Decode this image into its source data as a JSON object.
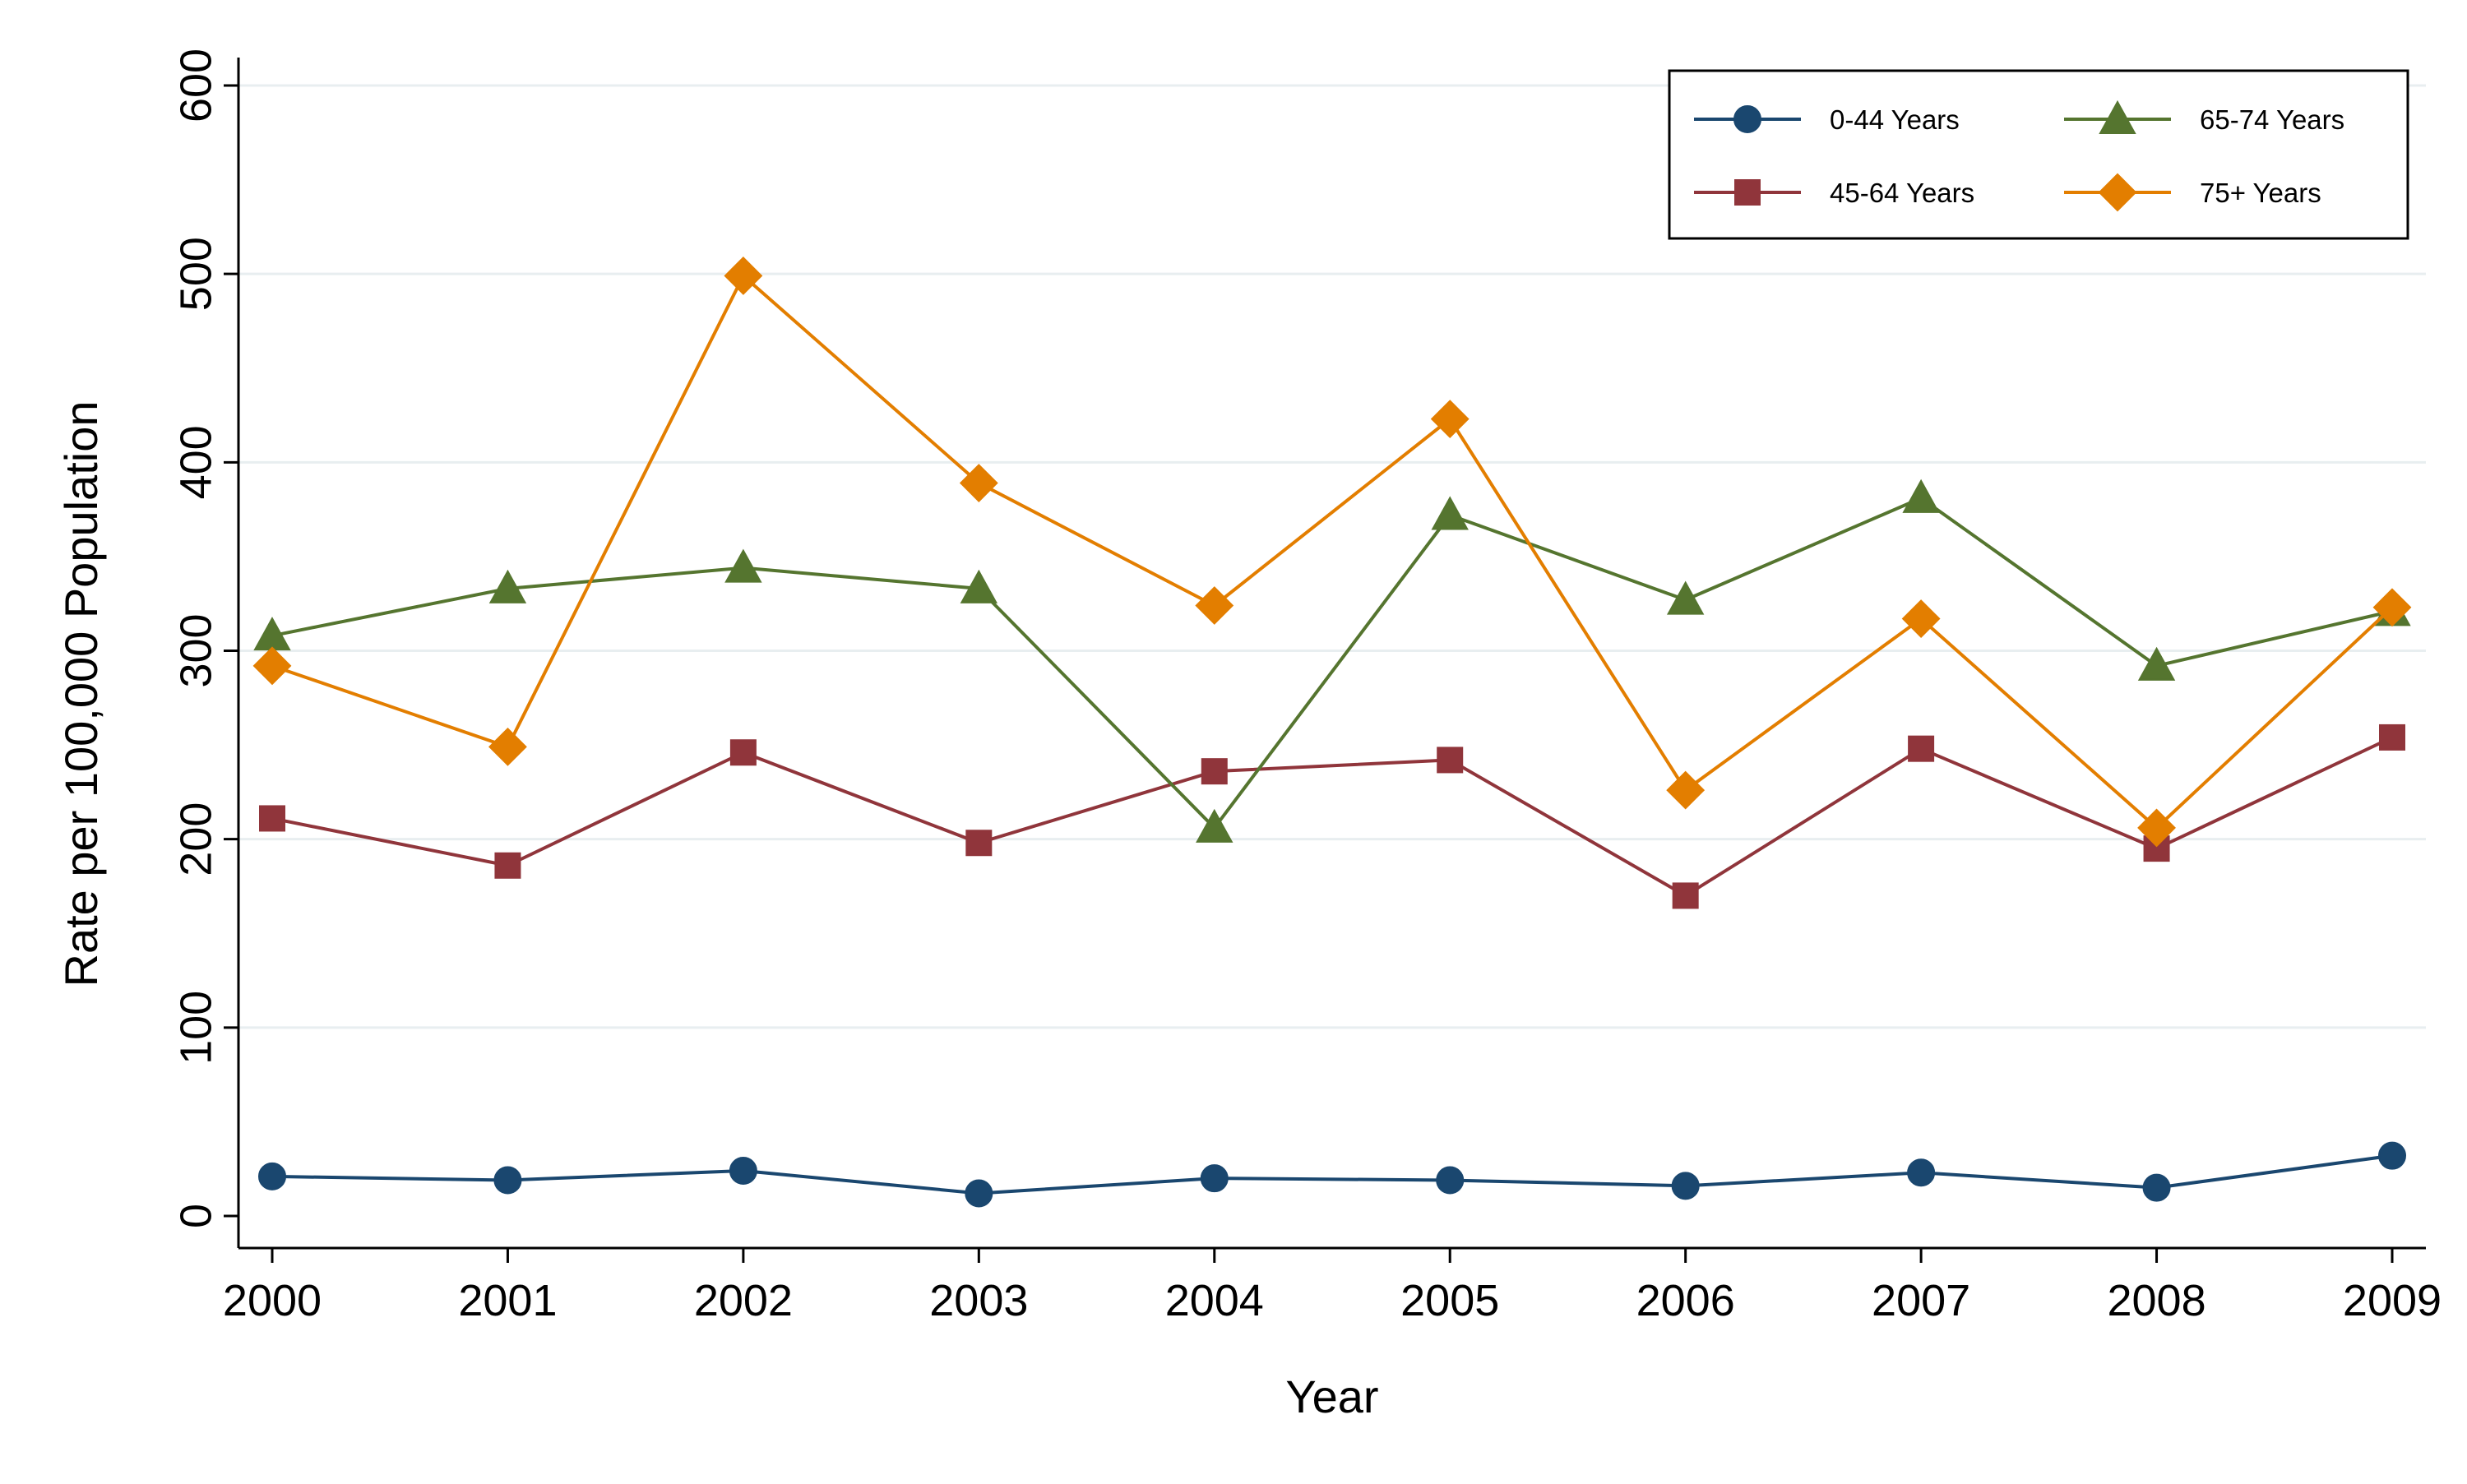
{
  "chart_data": {
    "type": "line",
    "title": "",
    "xlabel": "Year",
    "ylabel": "Rate per 100,000 Population",
    "ylim": [
      0,
      600
    ],
    "yticks": [
      "0",
      "100",
      "200",
      "300",
      "400",
      "500",
      "600"
    ],
    "x": [
      "2000",
      "2001",
      "2002",
      "2003",
      "2004",
      "2005",
      "2006",
      "2007",
      "2008",
      "2009"
    ],
    "grid": true,
    "legend_position": "top-right",
    "series": [
      {
        "name": "0-44 Years",
        "marker": "circle",
        "color": "#1a476f",
        "values": [
          21,
          19,
          24,
          12,
          20,
          19,
          16,
          23,
          15,
          32
        ]
      },
      {
        "name": "45-64 Years",
        "marker": "square",
        "color": "#90353b",
        "values": [
          211,
          186,
          246,
          198,
          236,
          242,
          170,
          248,
          195,
          254
        ]
      },
      {
        "name": "65-74 Years",
        "marker": "triangle",
        "color": "#55752f",
        "values": [
          308,
          333,
          344,
          333,
          206,
          372,
          327,
          381,
          292,
          321
        ]
      },
      {
        "name": "75+ Years",
        "marker": "diamond",
        "color": "#e37e00",
        "values": [
          292,
          249,
          499,
          389,
          324,
          423,
          226,
          317,
          206,
          323
        ]
      }
    ]
  }
}
